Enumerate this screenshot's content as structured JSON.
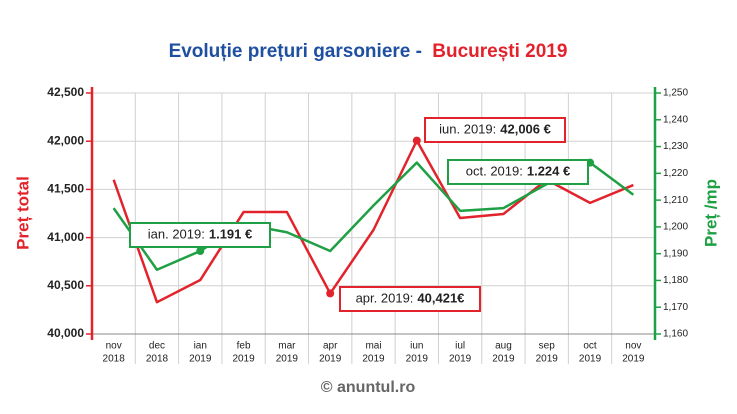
{
  "chart_data": {
    "type": "line",
    "title": "Evoluție prețuri garsoniere -",
    "title_highlight": "București 2019",
    "ylabel": "Preț total",
    "y2label": "Preț /mp",
    "footer": "© anuntul.ro",
    "categories": [
      [
        "nov",
        "2018"
      ],
      [
        "dec",
        "2018"
      ],
      [
        "ian",
        "2019"
      ],
      [
        "feb",
        "2019"
      ],
      [
        "mar",
        "2019"
      ],
      [
        "apr",
        "2019"
      ],
      [
        "mai",
        "2019"
      ],
      [
        "iun",
        "2019"
      ],
      [
        "iul",
        "2019"
      ],
      [
        "aug",
        "2019"
      ],
      [
        "sep",
        "2019"
      ],
      [
        "oct",
        "2019"
      ],
      [
        "nov",
        "2019"
      ]
    ],
    "ylim": [
      40000,
      42500
    ],
    "yticks": [
      {
        "value": 40000,
        "label": "40,000"
      },
      {
        "value": 40500,
        "label": "40,500"
      },
      {
        "value": 41000,
        "label": "41,000"
      },
      {
        "value": 41500,
        "label": "41,500"
      },
      {
        "value": 42000,
        "label": "42,000"
      },
      {
        "value": 42500,
        "label": "42,500"
      }
    ],
    "y2lim": [
      1160,
      1250
    ],
    "y2ticks": [
      {
        "value": 1160,
        "label": "1,160"
      },
      {
        "value": 1170,
        "label": "1,170"
      },
      {
        "value": 1180,
        "label": "1,180"
      },
      {
        "value": 1190,
        "label": "1,190"
      },
      {
        "value": 1200,
        "label": "1,200"
      },
      {
        "value": 1210,
        "label": "1,210"
      },
      {
        "value": 1220,
        "label": "1,220"
      },
      {
        "value": 1230,
        "label": "1,230"
      },
      {
        "value": 1240,
        "label": "1,240"
      },
      {
        "value": 1250,
        "label": "1,250"
      }
    ],
    "grid": true,
    "series": [
      {
        "name": "Preț total",
        "color": "#e3232c",
        "values": [
          41600,
          40330,
          40560,
          41265,
          41265,
          40421,
          41080,
          42006,
          41203,
          41245,
          41600,
          41360,
          41545
        ],
        "markers": [
          5,
          7
        ]
      },
      {
        "name": "Preț /mp",
        "color": "#1fa044",
        "axis": "y2",
        "values": [
          1207,
          1184,
          1191,
          1201,
          1198,
          1191,
          1208,
          1224,
          1206,
          1207,
          1216,
          1224,
          1212
        ],
        "markers": [
          2,
          11
        ]
      }
    ],
    "annotations": [
      {
        "text": "iun. 2019:",
        "value_text": "42,006 €",
        "color": "#e3232c"
      },
      {
        "text": "oct. 2019:",
        "value_text": "1.224 €",
        "color": "#1fa044"
      },
      {
        "text": "ian. 2019:",
        "value_text": "1.191 €",
        "color": "#1fa044"
      },
      {
        "text": "apr. 2019:",
        "value_text": "40,421€",
        "color": "#e3232c"
      }
    ]
  }
}
